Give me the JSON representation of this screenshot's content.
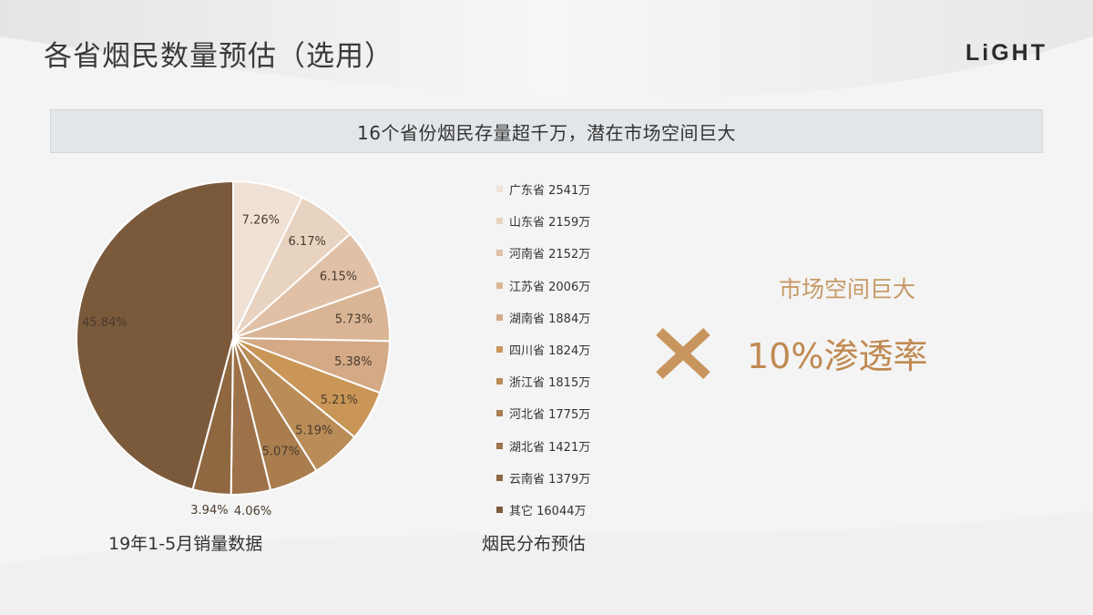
{
  "page": {
    "title": "各省烟民数量预估（选用）",
    "logo": "LiGHT",
    "banner": "16个省份烟民存量超千万，潜在市场空间巨大"
  },
  "chart_data": [
    {
      "type": "pie",
      "caption": "19年1-5月销量数据",
      "values": [
        7.26,
        6.17,
        6.15,
        5.73,
        5.38,
        5.21,
        5.19,
        5.07,
        4.06,
        3.94,
        45.84
      ],
      "labels": [
        "7.26%",
        "6.17%",
        "6.15%",
        "5.73%",
        "5.38%",
        "5.21%",
        "5.19%",
        "5.07%",
        "4.06%",
        "3.94%",
        "45.84%"
      ],
      "colors": [
        "#efe1d6",
        "#e8d2c0",
        "#e0c1a8",
        "#d9b595",
        "#d3a986",
        "#c99658",
        "#b98c58",
        "#a97d4e",
        "#9d724a",
        "#8f6841",
        "#7b5a3c"
      ]
    },
    {
      "type": "legend",
      "caption": "烟民分布预估",
      "items": [
        {
          "label": "广东省 2541万",
          "color": "#efe1d6"
        },
        {
          "label": "山东省 2159万",
          "color": "#e8d2c0"
        },
        {
          "label": "河南省 2152万",
          "color": "#e0c1a8"
        },
        {
          "label": "江苏省 2006万",
          "color": "#d9b595"
        },
        {
          "label": "湖南省 1884万",
          "color": "#d3a986"
        },
        {
          "label": "四川省 1824万",
          "color": "#c99658"
        },
        {
          "label": "浙江省 1815万",
          "color": "#b98c58"
        },
        {
          "label": "河北省 1775万",
          "color": "#a97d4e"
        },
        {
          "label": "湖北省 1421万",
          "color": "#9d724a"
        },
        {
          "label": "云南省 1379万",
          "color": "#8f6841"
        },
        {
          "label": "其它 16044万",
          "color": "#7b5a3c"
        }
      ]
    }
  ],
  "formula": {
    "line1": "市场空间巨大",
    "line2": "10%渗透率",
    "operator_icon": "multiply-icon",
    "accent": "#c8955e"
  }
}
